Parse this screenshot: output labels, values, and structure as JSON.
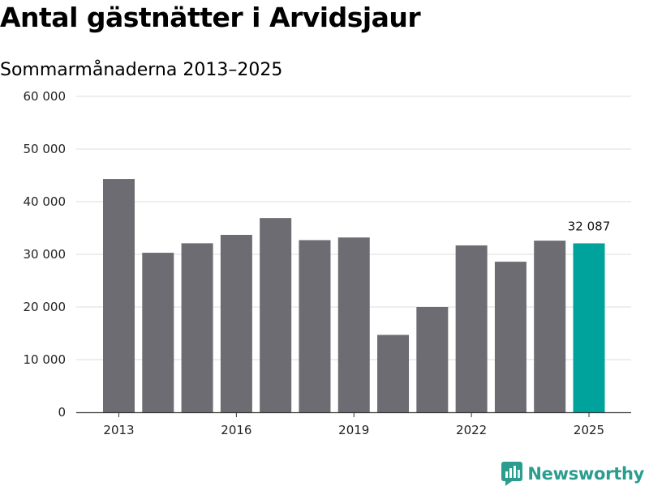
{
  "title": "Antal gästnätter i Arvidsjaur",
  "subtitle": "Sommarmånaderna 2013–2025",
  "brand": "Newsworthy",
  "colors": {
    "bar": "#6d6c72",
    "highlight": "#00a39b",
    "brand": "#2a9d8f",
    "grid": "#dddddd"
  },
  "chart_data": {
    "type": "bar",
    "categories": [
      "2013",
      "2014",
      "2015",
      "2016",
      "2017",
      "2018",
      "2019",
      "2020",
      "2021",
      "2022",
      "2023",
      "2024",
      "2025"
    ],
    "x_tick_labels": [
      "2013",
      "2016",
      "2019",
      "2022",
      "2025"
    ],
    "values": [
      44300,
      30300,
      32100,
      33700,
      36900,
      32700,
      33200,
      14700,
      20000,
      31700,
      28600,
      32600,
      32087
    ],
    "highlight_index": 12,
    "data_labels": [
      {
        "index": 12,
        "text": "32 087"
      }
    ],
    "ylim": [
      0,
      60000
    ],
    "y_ticks": [
      0,
      10000,
      20000,
      30000,
      40000,
      50000,
      60000
    ],
    "y_tick_labels": [
      "0",
      "10 000",
      "20 000",
      "30 000",
      "40 000",
      "50 000",
      "60 000"
    ],
    "grid": true,
    "xlabel": "",
    "ylabel": ""
  }
}
